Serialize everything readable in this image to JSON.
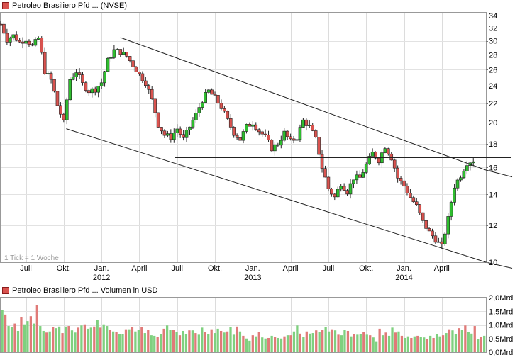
{
  "chart_data": [
    {
      "type": "candlestick",
      "title": "Petroleo Brasiliero Pfd ... (NVSE)",
      "legend_color": "#d9534f",
      "up_color": "#2ebd2e",
      "down_color": "#d9534f",
      "note": "1 Tick = 1 Woche",
      "y_scale": "log",
      "ylim": [
        10,
        34.5
      ],
      "y_ticks": [
        "10",
        "12",
        "14",
        "16",
        "18",
        "20",
        "22",
        "24",
        "26",
        "28",
        "30",
        "32",
        "34"
      ],
      "x_range": [
        "2011-05",
        "2014-05"
      ],
      "x_month_ticks": [
        {
          "label": "Juli",
          "t": 2
        },
        {
          "label": "Okt.",
          "t": 5
        },
        {
          "label": "Jan.",
          "t": 8
        },
        {
          "label": "April",
          "t": 11
        },
        {
          "label": "Juli",
          "t": 14
        },
        {
          "label": "Okt.",
          "t": 17
        },
        {
          "label": "Jan.",
          "t": 20
        },
        {
          "label": "April",
          "t": 23
        },
        {
          "label": "Juli",
          "t": 26
        },
        {
          "label": "Okt.",
          "t": 29
        },
        {
          "label": "Jan.",
          "t": 32
        },
        {
          "label": "April",
          "t": 35
        }
      ],
      "x_year_labels": [
        {
          "label": "2012",
          "t": 8
        },
        {
          "label": "2013",
          "t": 20
        },
        {
          "label": "2014",
          "t": 32
        }
      ],
      "close_path": [
        [
          0,
          32.6
        ],
        [
          0.5,
          30.2
        ],
        [
          1,
          30.8
        ],
        [
          1.5,
          29.8
        ],
        [
          2,
          30.3
        ],
        [
          2.5,
          29.2
        ],
        [
          3,
          30.4
        ],
        [
          3.5,
          25.8
        ],
        [
          4,
          24.7
        ],
        [
          4.5,
          21.8
        ],
        [
          5,
          20.0
        ],
        [
          5.5,
          24.8
        ],
        [
          6,
          25.8
        ],
        [
          6.5,
          24.2
        ],
        [
          7,
          23.4
        ],
        [
          7.5,
          23.6
        ],
        [
          8,
          24.4
        ],
        [
          8.5,
          27.2
        ],
        [
          9,
          28.6
        ],
        [
          9.5,
          28.4
        ],
        [
          10,
          27.8
        ],
        [
          10.5,
          26.6
        ],
        [
          11,
          25.4
        ],
        [
          11.5,
          24.4
        ],
        [
          12,
          22.4
        ],
        [
          12.5,
          19.8
        ],
        [
          13,
          18.8
        ],
        [
          13.5,
          18.6
        ],
        [
          14,
          19.4
        ],
        [
          14.5,
          18.4
        ],
        [
          15,
          19.6
        ],
        [
          15.5,
          20.8
        ],
        [
          16,
          22.4
        ],
        [
          16.5,
          23.4
        ],
        [
          17,
          22.6
        ],
        [
          17.5,
          21.6
        ],
        [
          18,
          20.2
        ],
        [
          18.5,
          19.0
        ],
        [
          19,
          18.4
        ],
        [
          19.5,
          19.6
        ],
        [
          20,
          20.0
        ],
        [
          20.5,
          19.2
        ],
        [
          21,
          18.6
        ],
        [
          21.5,
          17.6
        ],
        [
          22,
          18.0
        ],
        [
          22.5,
          19.0
        ],
        [
          23,
          18.2
        ],
        [
          23.5,
          18.6
        ],
        [
          24,
          20.2
        ],
        [
          24.5,
          19.6
        ],
        [
          25,
          18.4
        ],
        [
          25.5,
          16.0
        ],
        [
          26,
          14.4
        ],
        [
          26.5,
          13.8
        ],
        [
          27,
          14.8
        ],
        [
          27.5,
          14.2
        ],
        [
          28,
          15.2
        ],
        [
          28.5,
          15.2
        ],
        [
          29,
          16.2
        ],
        [
          29.5,
          17.2
        ],
        [
          30,
          16.6
        ],
        [
          30.5,
          17.8
        ],
        [
          31,
          16.8
        ],
        [
          31.5,
          15.2
        ],
        [
          32,
          14.6
        ],
        [
          32.5,
          13.8
        ],
        [
          33,
          13.2
        ],
        [
          33.5,
          12.2
        ],
        [
          34,
          11.6
        ],
        [
          34.5,
          11.2
        ],
        [
          35,
          10.8
        ],
        [
          35.5,
          12.4
        ],
        [
          36,
          14.6
        ],
        [
          36.5,
          15.4
        ],
        [
          37,
          16.4
        ],
        [
          37.5,
          16.6
        ]
      ],
      "trend_lines": [
        {
          "name": "upper-channel",
          "from": [
            9.5,
            30.5
          ],
          "to": [
            38.5,
            15.8
          ]
        },
        {
          "name": "lower-channel",
          "from": [
            5.2,
            19.4
          ],
          "to": [
            38.5,
            10.0
          ]
        },
        {
          "name": "horizontal-support",
          "from": [
            13.8,
            16.8
          ],
          "to": [
            38.5,
            16.8
          ]
        }
      ]
    },
    {
      "type": "bar",
      "title": "Petroleo Brasiliero Pfd ... Volumen in USD",
      "legend_color": "#d9534f",
      "ylabel_unit": "Mrd",
      "ylim": [
        0,
        2.0
      ],
      "y_ticks": [
        "0,0Mrd",
        "0,5Mrd",
        "1,0Mrd",
        "1,5Mrd",
        "2,0Mrd"
      ],
      "values": [
        1.55,
        1.38,
        0.96,
        0.92,
        1.05,
        0.78,
        1.28,
        1.02,
        1.14,
        1.32,
        1.05,
        1.72,
        0.96,
        0.78,
        0.72,
        0.76,
        0.92,
        0.88,
        0.94,
        0.7,
        0.94,
        0.96,
        0.8,
        0.72,
        0.9,
        0.98,
        1.02,
        0.86,
        0.9,
        0.94,
        1.18,
        0.9,
        1.02,
        0.96,
        0.82,
        0.76,
        0.74,
        0.66,
        0.66,
        0.84,
        0.84,
        0.92,
        0.76,
        0.82,
        0.92,
        0.7,
        0.82,
        0.62,
        0.6,
        0.56,
        0.66,
        0.86,
        0.98,
        0.82,
        0.82,
        0.74,
        0.62,
        0.78,
        0.66,
        0.8,
        0.8,
        0.7,
        0.64,
        0.9,
        0.74,
        0.66,
        0.84,
        0.7,
        0.86,
        0.78,
        0.72,
        0.76,
        0.92,
        0.64,
        0.94,
        0.76,
        0.6,
        0.5,
        0.42,
        0.62,
        0.58,
        0.74,
        0.54,
        0.5,
        0.52,
        0.6,
        0.56,
        0.52,
        0.5,
        0.58,
        0.62,
        0.62,
        0.76,
        0.98,
        0.68,
        0.56,
        0.76,
        0.68,
        0.7,
        0.8,
        0.74,
        0.82,
        0.92,
        0.76,
        0.84,
        0.8,
        0.64,
        0.62,
        0.82,
        0.78,
        0.58,
        0.66,
        0.64,
        0.66,
        0.74,
        0.64,
        0.62,
        0.54,
        0.4,
        0.86,
        0.62,
        0.72,
        0.6,
        0.9,
        0.72,
        0.76,
        0.6,
        0.52,
        0.58,
        0.52,
        0.58,
        0.6,
        0.56,
        0.54,
        0.48,
        0.6,
        0.52,
        0.66,
        0.58,
        0.62,
        0.7,
        0.84,
        0.8,
        0.66,
        0.88,
        0.82,
        0.98,
        0.74,
        0.68,
        0.96,
        0.48,
        0.56,
        0.6
      ]
    }
  ]
}
